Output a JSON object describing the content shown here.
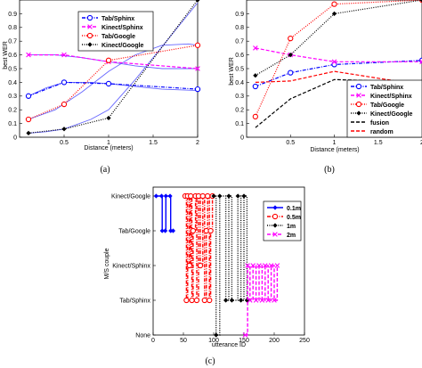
{
  "chart_data": [
    {
      "panel": "a",
      "caption": "(a)",
      "type": "line",
      "xlabel": "Distance (meters)",
      "ylabel": "best WER",
      "xlim": [
        0,
        2
      ],
      "ylim": [
        0,
        1
      ],
      "xticks": [
        "0.5",
        "1",
        "1.5",
        "2"
      ],
      "yticks": [
        "0",
        "0.1",
        "0.2",
        "0.3",
        "0.4",
        "0.5",
        "0.6",
        "0.7",
        "0.8",
        "0.9",
        "1"
      ],
      "legend_position": "top-right",
      "series": [
        {
          "name": "Tab/Sphinx",
          "color": "#0000ff",
          "style": "dashdot",
          "marker": "circle",
          "x": [
            0.1,
            0.5,
            1,
            2
          ],
          "y": [
            0.3,
            0.4,
            0.39,
            0.35
          ]
        },
        {
          "name": "Kinect/Sphinx",
          "color": "#ff00ff",
          "style": "dashed",
          "marker": "x",
          "x": [
            0.1,
            0.5,
            1,
            2
          ],
          "y": [
            0.6,
            0.6,
            0.55,
            0.5
          ]
        },
        {
          "name": "Tab/Google",
          "color": "#ff0000",
          "style": "dotted",
          "marker": "circle",
          "x": [
            0.1,
            0.5,
            1,
            2
          ],
          "y": [
            0.13,
            0.24,
            0.56,
            0.67
          ]
        },
        {
          "name": "Kinect/Google",
          "color": "#000000",
          "style": "dotted",
          "marker": "dot",
          "x": [
            0.1,
            0.5,
            1,
            2
          ],
          "y": [
            0.03,
            0.06,
            0.14,
            1.0
          ]
        }
      ],
      "fit_curves": [
        {
          "color": "#6666ff",
          "x": [
            0.1,
            0.3,
            0.5,
            0.8,
            1.0,
            1.3,
            1.6,
            1.9,
            2.0
          ],
          "y": [
            0.03,
            0.04,
            0.06,
            0.13,
            0.2,
            0.42,
            0.66,
            0.9,
            0.98
          ]
        },
        {
          "color": "#6666ff",
          "x": [
            0.1,
            0.4,
            0.7,
            1.0,
            1.3,
            1.6,
            1.9,
            2.0
          ],
          "y": [
            0.13,
            0.2,
            0.33,
            0.48,
            0.6,
            0.67,
            0.68,
            0.67
          ]
        },
        {
          "color": "#6666ff",
          "x": [
            0.1,
            0.3,
            0.5,
            0.8,
            1.0,
            1.3,
            1.6,
            2.0
          ],
          "y": [
            0.3,
            0.36,
            0.4,
            0.4,
            0.39,
            0.37,
            0.35,
            0.34
          ]
        },
        {
          "color": "#6666ff",
          "x": [
            0.1,
            0.4,
            0.7,
            1.0,
            1.3,
            1.6,
            2.0
          ],
          "y": [
            0.6,
            0.6,
            0.58,
            0.55,
            0.52,
            0.5,
            0.5
          ]
        }
      ]
    },
    {
      "panel": "b",
      "caption": "(b)",
      "type": "line",
      "xlabel": "Distance (meters)",
      "ylabel": "best WER",
      "xlim": [
        0,
        2
      ],
      "ylim": [
        0,
        1
      ],
      "xticks": [
        "0.5",
        "1",
        "1.5",
        "2"
      ],
      "yticks": [
        "0",
        "0.1",
        "0.2",
        "0.3",
        "0.4",
        "0.5",
        "0.6",
        "0.7",
        "0.8",
        "0.9",
        "1"
      ],
      "legend_position": "center-right",
      "series": [
        {
          "name": "Tab/Sphinx",
          "color": "#0000ff",
          "style": "dashdot",
          "marker": "circle",
          "x": [
            0.1,
            0.5,
            1,
            2
          ],
          "y": [
            0.37,
            0.47,
            0.53,
            0.56
          ]
        },
        {
          "name": "Kinect/Sphinx",
          "color": "#ff00ff",
          "style": "dashed",
          "marker": "x",
          "x": [
            0.1,
            0.5,
            1,
            2
          ],
          "y": [
            0.65,
            0.6,
            0.55,
            0.55
          ]
        },
        {
          "name": "Tab/Google",
          "color": "#ff0000",
          "style": "dotted",
          "marker": "circle",
          "x": [
            0.1,
            0.5,
            1,
            2
          ],
          "y": [
            0.15,
            0.72,
            0.97,
            1.0
          ]
        },
        {
          "name": "Kinect/Google",
          "color": "#000000",
          "style": "dotted",
          "marker": "dot",
          "x": [
            0.1,
            0.5,
            1,
            2
          ],
          "y": [
            0.45,
            0.6,
            0.9,
            1.0
          ]
        },
        {
          "name": "fusion",
          "color": "#000000",
          "style": "dashed",
          "marker": "none",
          "x": [
            0.1,
            0.5,
            1,
            2
          ],
          "y": [
            0.07,
            0.28,
            0.42,
            0.4
          ]
        },
        {
          "name": "random",
          "color": "#ff0000",
          "style": "dashed",
          "marker": "none",
          "x": [
            0.1,
            0.5,
            1,
            2
          ],
          "y": [
            0.4,
            0.41,
            0.48,
            0.38
          ]
        }
      ]
    },
    {
      "panel": "c",
      "caption": "(c)",
      "type": "line",
      "xlabel": "utterance ID",
      "ylabel": "M/S couple",
      "xlim": [
        0,
        250
      ],
      "ylim": [
        0,
        4
      ],
      "xticks": [
        "0",
        "50",
        "100",
        "150",
        "200",
        "250"
      ],
      "yticklabels": [
        "None",
        "Tab/Sphinx",
        "Kinect/Sphinx",
        "Tab/Google",
        "Kinect/Google"
      ],
      "legend_position": "top-right",
      "series": [
        {
          "name": "0.1m",
          "color": "#0000ff",
          "style": "solid",
          "marker": "dot",
          "x": [
            5,
            14,
            15,
            20,
            21,
            28,
            29,
            33
          ],
          "y": [
            4,
            4,
            3,
            3,
            4,
            4,
            3,
            3
          ]
        },
        {
          "name": "0.5m",
          "color": "#ff0000",
          "style": "dashdot",
          "marker": "circle",
          "x": [
            53,
            55,
            57,
            60,
            62,
            64,
            66,
            70,
            72,
            75,
            78,
            82,
            85,
            88,
            90,
            93,
            95,
            98
          ],
          "y": [
            4,
            1,
            4,
            2,
            4,
            1,
            3,
            4,
            1,
            4,
            2,
            4,
            1,
            3,
            4,
            1,
            3,
            4
          ]
        },
        {
          "name": "1m",
          "color": "#000000",
          "style": "dotted",
          "marker": "dot",
          "x": [
            100,
            104,
            110,
            120,
            125,
            130,
            140,
            145,
            150,
            155
          ],
          "y": [
            4,
            0,
            4,
            1,
            4,
            1,
            4,
            1,
            4,
            1
          ]
        },
        {
          "name": "2m",
          "color": "#ff00ff",
          "style": "dashed",
          "marker": "x",
          "x": [
            152,
            156,
            160,
            165,
            170,
            175,
            180,
            185,
            190,
            195,
            200,
            205
          ],
          "y": [
            0,
            2,
            1,
            2,
            1,
            2,
            1,
            2,
            1,
            2,
            1,
            2
          ]
        }
      ]
    }
  ]
}
